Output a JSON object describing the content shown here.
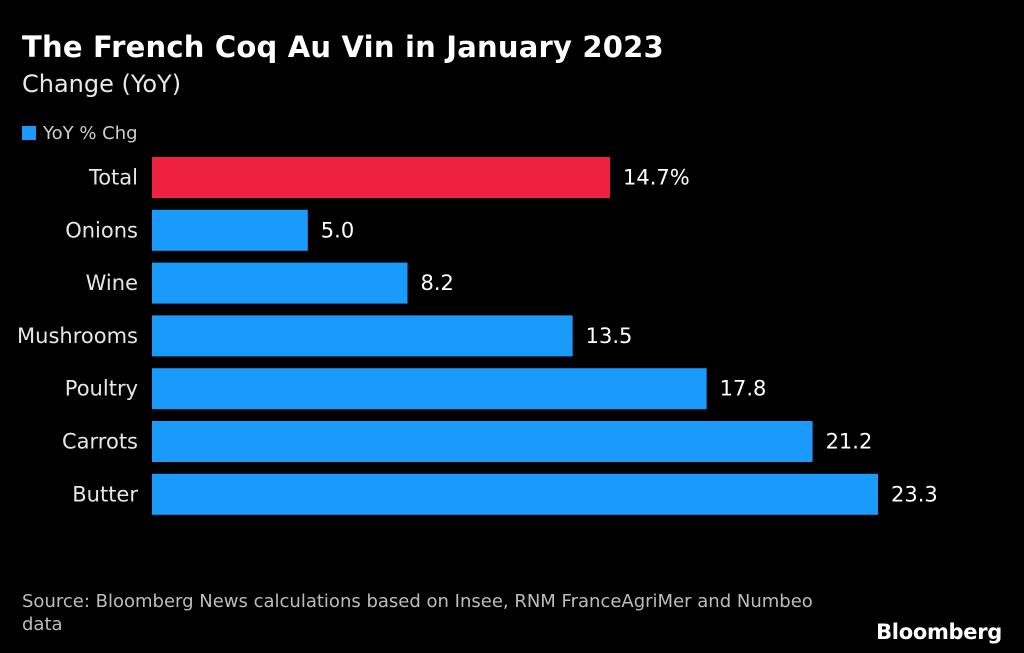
{
  "chart_data": {
    "type": "bar",
    "orientation": "horizontal",
    "title": "The French Coq Au Vin in January 2023",
    "subtitle": "Change (YoY)",
    "legend": [
      {
        "name": "YoY % Chg",
        "color": "#1a9bfc"
      }
    ],
    "categories": [
      "Total",
      "Onions",
      "Wine",
      "Mushrooms",
      "Poultry",
      "Carrots",
      "Butter"
    ],
    "values": [
      14.7,
      5.0,
      8.2,
      13.5,
      17.8,
      21.2,
      23.3
    ],
    "value_labels": [
      "14.7%",
      "5.0",
      "8.2",
      "13.5",
      "17.8",
      "21.2",
      "23.3"
    ],
    "bar_colors": [
      "#ee2140",
      "#1a9bfc",
      "#1a9bfc",
      "#1a9bfc",
      "#1a9bfc",
      "#1a9bfc",
      "#1a9bfc"
    ],
    "xlim": [
      0,
      23.3
    ],
    "xlabel": "",
    "ylabel": "",
    "grid": false
  },
  "source": "Source: Bloomberg News calculations based on Insee, RNM FranceAgriMer and Numbeo data",
  "brand": "Bloomberg",
  "colors": {
    "background": "#000000",
    "highlight": "#ee2140",
    "series": "#1a9bfc"
  }
}
